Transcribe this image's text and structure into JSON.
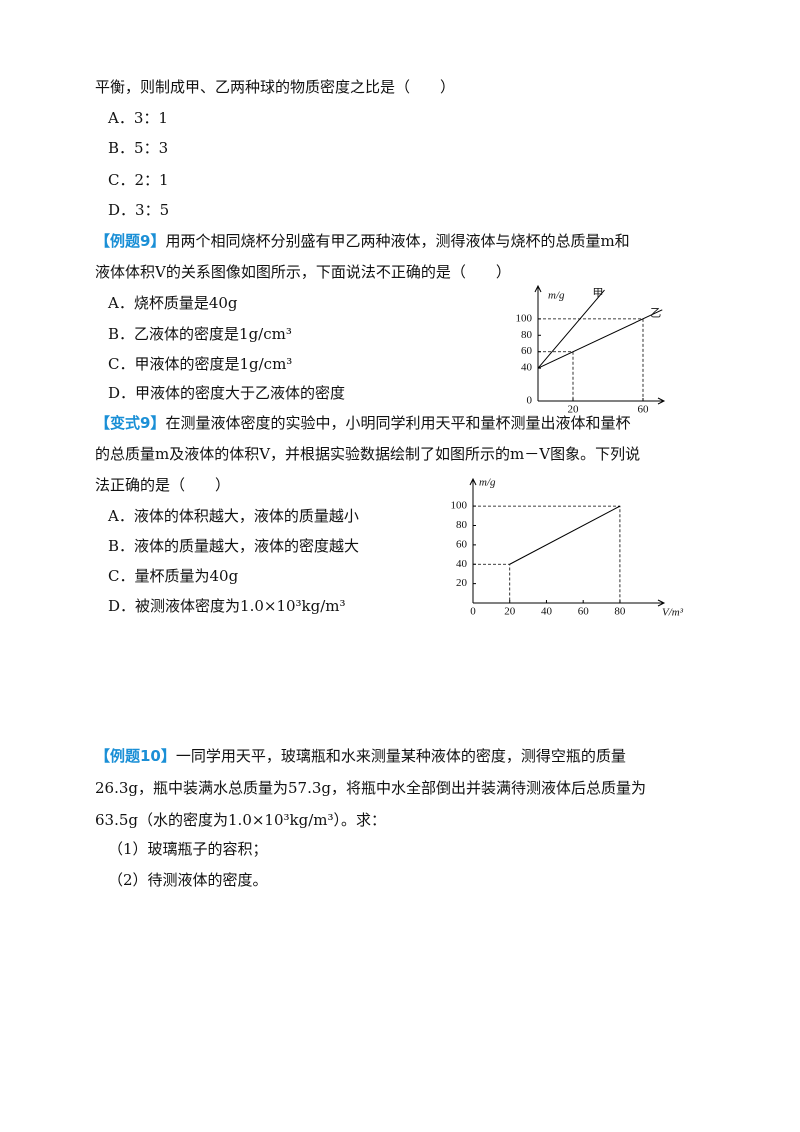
{
  "lines": [
    {
      "text": "平衡，则制成甲、乙两种球的物质密度之比是（　　）"
    },
    {
      "text": "A．3：1",
      "indent": true
    },
    {
      "text": "B．5：3",
      "indent": true
    },
    {
      "text": "C．2：1",
      "indent": true
    },
    {
      "text": "D．3：5",
      "indent": true
    },
    {
      "tag": "【例题9】",
      "text": "用两个相同烧杯分别盛有甲乙两种液体，测得液体与烧杯的总质量m和"
    },
    {
      "text": "液体体积V的关系图像如图所示，下面说法不正确的是（　　）"
    },
    {
      "text": "A．烧杯质量是40g",
      "indent": true
    },
    {
      "text": "B．乙液体的密度是1g/cm³",
      "indent": true
    },
    {
      "text": "C．甲液体的密度是1g/cm³",
      "indent": true
    },
    {
      "text": "D．甲液体的密度大于乙液体的密度",
      "indent": true
    },
    {
      "tag": "【变式9】",
      "text": "在测量液体密度的实验中，小明同学利用天平和量杯测量出液体和量杯"
    },
    {
      "text": "的总质量m及液体的体积V，并根据实验数据绘制了如图所示的m－V图象。下列说"
    },
    {
      "text": "法正确的是（　　）"
    },
    {
      "text": "A．液体的体积越大，液体的质量越小",
      "indent": true
    },
    {
      "text": "B．液体的质量越大，液体的密度越大",
      "indent": true
    },
    {
      "text": "C．量杯质量为40g",
      "indent": true
    },
    {
      "text": "D．被测液体密度为1.0×10³kg/m³",
      "indent": true
    },
    {
      "tag": "【例题10】",
      "text": "一同学用天平，玻璃瓶和水来测量某种液体的密度，测得空瓶的质量"
    },
    {
      "text": "26.3g，瓶中装满水总质量为57.3g，将瓶中水全部倒出并装满待测液体后总质量为"
    },
    {
      "text": "63.5g（水的密度为1.0×10³kg/m³）。求："
    },
    {
      "text": "（1）玻璃瓶子的容积；",
      "indent": true
    },
    {
      "text": "（2）待测液体的密度。",
      "indent": true
    }
  ],
  "charts": [
    {
      "type": "line",
      "ylabel": "m/g",
      "xlim": [
        0,
        72
      ],
      "ylim": [
        0,
        140
      ],
      "xticks": [
        20,
        60
      ],
      "yticks": [
        0,
        40,
        60,
        80,
        100
      ],
      "series": [
        {
          "name": "甲",
          "x": [
            0,
            38
          ],
          "values": [
            40,
            135
          ]
        },
        {
          "name": "乙",
          "x": [
            0,
            71
          ],
          "values": [
            40,
            111
          ]
        }
      ],
      "guides": [
        [
          20,
          60
        ],
        [
          60,
          100
        ]
      ]
    },
    {
      "type": "line",
      "ylabel": "m/g",
      "xlabel": "V/m³",
      "xlim": [
        0,
        104
      ],
      "ylim": [
        0,
        128
      ],
      "xticks": [
        0,
        20,
        40,
        60,
        80
      ],
      "yticks": [
        20,
        40,
        60,
        80,
        100
      ],
      "series": [
        {
          "x": [
            20,
            80
          ],
          "values": [
            40,
            100
          ]
        }
      ],
      "guides": [
        [
          20,
          40
        ],
        [
          80,
          100
        ]
      ]
    }
  ]
}
